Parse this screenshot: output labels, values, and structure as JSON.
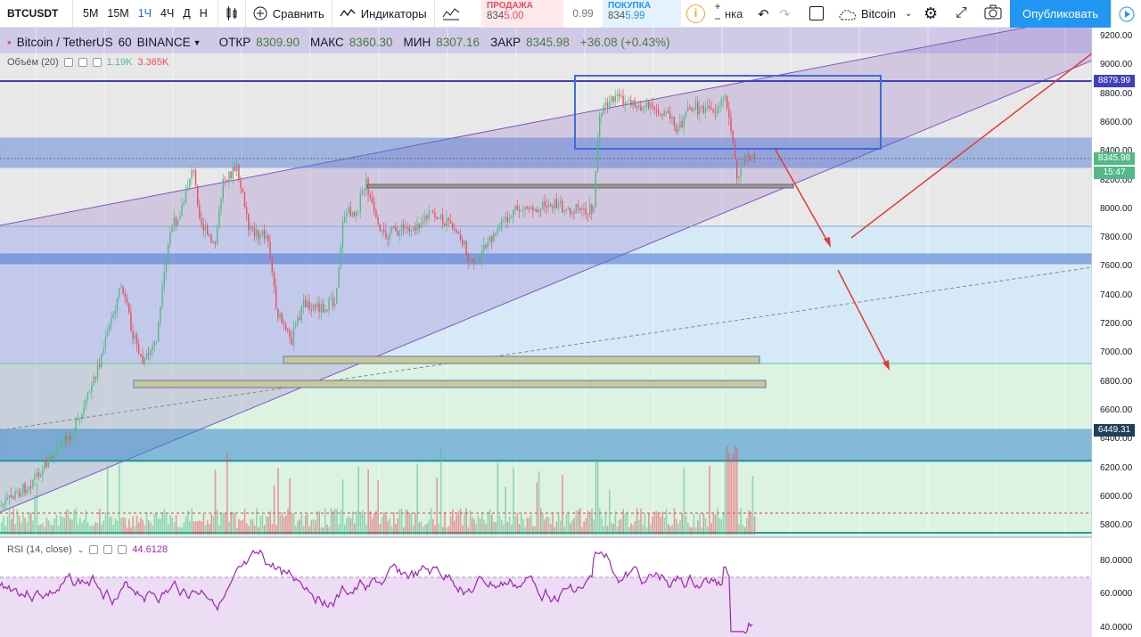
{
  "toolbar": {
    "symbol": "BTCUSDT",
    "intervals": [
      "5M",
      "15M",
      "1Ч",
      "4Ч",
      "Д",
      "Н"
    ],
    "active_interval": "1Ч",
    "compare_label": "Сравнить",
    "indicators_label": "Индикаторы",
    "sell_label": "ПРОДАЖА",
    "sell_price_main": "834",
    "sell_price_accent": "5.00",
    "spread": "0.99",
    "buy_label": "ПОКУПКА",
    "buy_price_main": "834",
    "buy_price_accent": "5.99",
    "partial_label": "нка",
    "bitcoin_label": "Bitcoin",
    "publish_label": "Опубликовать",
    "plus": "+",
    "minus": "−"
  },
  "legend": {
    "title": "Bitcoin / TetherUS",
    "interval": "60",
    "exchange": "BINANCE",
    "open_label": "ОТКР",
    "open": "8309.90",
    "high_label": "МАКС",
    "high": "8360.30",
    "low_label": "МИН",
    "low": "8307.16",
    "close_label": "ЗАКР",
    "close": "8345.98",
    "change": "+36.08 (+0.43%)"
  },
  "volume": {
    "label": "Объём (20)",
    "v1": "1.19K",
    "v2": "3.365K"
  },
  "rsi": {
    "label": "RSI (14, close)",
    "value": "44.6128"
  },
  "price_axis": [
    "9200.00",
    "9000.00",
    "8800.00",
    "8600.00",
    "8400.00",
    "8200.00",
    "8000.00",
    "7800.00",
    "7600.00",
    "7400.00",
    "7200.00",
    "7000.00",
    "6800.00",
    "6600.00",
    "6400.00",
    "6200.00",
    "6000.00",
    "5800.00"
  ],
  "rsi_axis": [
    "80.0000",
    "60.0000",
    "40.0000"
  ],
  "price_tags": {
    "high_line": "8879.99",
    "current": "8345.98",
    "timer": "15:47",
    "low_line": "6449.31"
  },
  "colors": {
    "bullish": "#53b987",
    "bearish": "#eb4d5c",
    "accent_blue": "#2196f3",
    "channel": "#7e57c2"
  }
}
